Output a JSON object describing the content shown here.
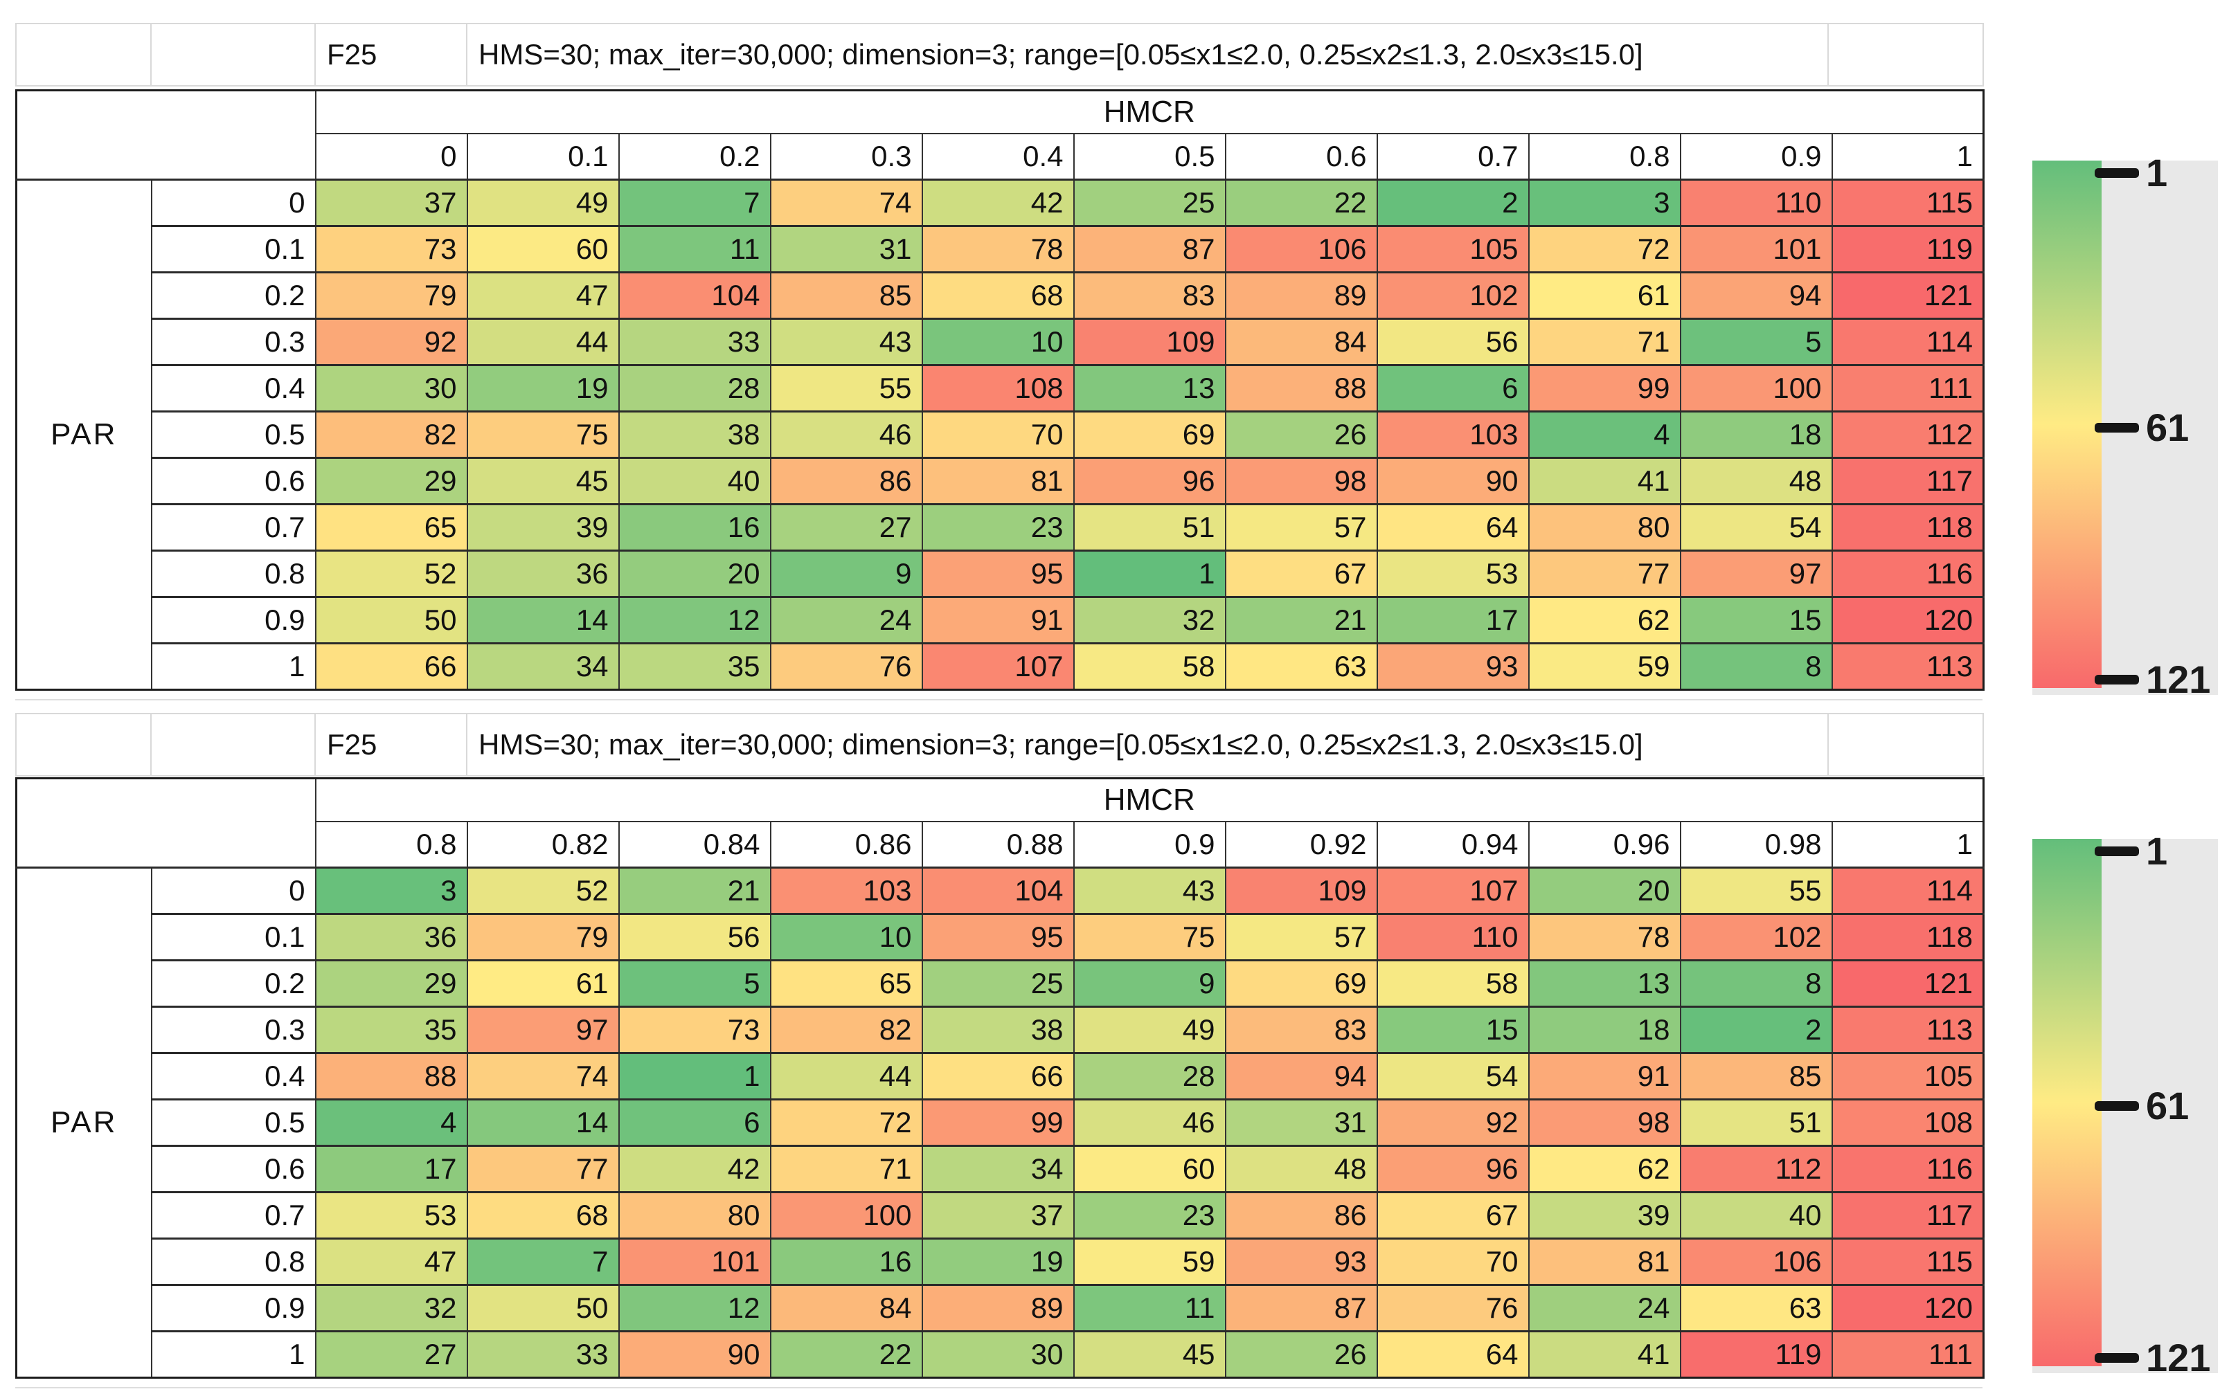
{
  "chart_data": [
    {
      "type": "heatmap",
      "title": "F25",
      "subtitle": "HMS=30; max_iter=30,000; dimension=3; range=[0.05≤x1≤2.0, 0.25≤x2≤1.3, 2.0≤x3≤15.0]",
      "xlabel": "HMCR",
      "ylabel": "PAR",
      "x": [
        "0",
        "0.1",
        "0.2",
        "0.3",
        "0.4",
        "0.5",
        "0.6",
        "0.7",
        "0.8",
        "0.9",
        "1"
      ],
      "y": [
        "0",
        "0.1",
        "0.2",
        "0.3",
        "0.4",
        "0.5",
        "0.6",
        "0.7",
        "0.8",
        "0.9",
        "1"
      ],
      "values": [
        [
          37,
          49,
          7,
          74,
          42,
          25,
          22,
          2,
          3,
          110,
          115
        ],
        [
          73,
          60,
          11,
          31,
          78,
          87,
          106,
          105,
          72,
          101,
          119
        ],
        [
          79,
          47,
          104,
          85,
          68,
          83,
          89,
          102,
          61,
          94,
          121
        ],
        [
          92,
          44,
          33,
          43,
          10,
          109,
          84,
          56,
          71,
          5,
          114
        ],
        [
          30,
          19,
          28,
          55,
          108,
          13,
          88,
          6,
          99,
          100,
          111
        ],
        [
          82,
          75,
          38,
          46,
          70,
          69,
          26,
          103,
          4,
          18,
          112
        ],
        [
          29,
          45,
          40,
          86,
          81,
          96,
          98,
          90,
          41,
          48,
          117
        ],
        [
          65,
          39,
          16,
          27,
          23,
          51,
          57,
          64,
          80,
          54,
          118
        ],
        [
          52,
          36,
          20,
          9,
          95,
          1,
          67,
          53,
          77,
          97,
          116
        ],
        [
          50,
          14,
          12,
          24,
          91,
          32,
          21,
          17,
          62,
          15,
          120
        ],
        [
          66,
          34,
          35,
          76,
          107,
          58,
          63,
          93,
          59,
          8,
          113
        ]
      ],
      "colorbar": {
        "ticks": [
          "1",
          "61",
          "121"
        ],
        "min": 1,
        "mid": 61,
        "max": 121,
        "min_color": "#63BE7B",
        "mid_color": "#FFEB84",
        "max_color": "#F8696B"
      }
    },
    {
      "type": "heatmap",
      "title": "F25",
      "subtitle": "HMS=30; max_iter=30,000; dimension=3; range=[0.05≤x1≤2.0, 0.25≤x2≤1.3, 2.0≤x3≤15.0]",
      "xlabel": "HMCR",
      "ylabel": "PAR",
      "x": [
        "0.8",
        "0.82",
        "0.84",
        "0.86",
        "0.88",
        "0.9",
        "0.92",
        "0.94",
        "0.96",
        "0.98",
        "1"
      ],
      "y": [
        "0",
        "0.1",
        "0.2",
        "0.3",
        "0.4",
        "0.5",
        "0.6",
        "0.7",
        "0.8",
        "0.9",
        "1"
      ],
      "values": [
        [
          3,
          52,
          21,
          103,
          104,
          43,
          109,
          107,
          20,
          55,
          114
        ],
        [
          36,
          79,
          56,
          10,
          95,
          75,
          57,
          110,
          78,
          102,
          118
        ],
        [
          29,
          61,
          5,
          65,
          25,
          9,
          69,
          58,
          13,
          8,
          121
        ],
        [
          35,
          97,
          73,
          82,
          38,
          49,
          83,
          15,
          18,
          2,
          113
        ],
        [
          88,
          74,
          1,
          44,
          66,
          28,
          94,
          54,
          91,
          85,
          105
        ],
        [
          4,
          14,
          6,
          72,
          99,
          46,
          31,
          92,
          98,
          51,
          108
        ],
        [
          17,
          77,
          42,
          71,
          34,
          60,
          48,
          96,
          62,
          112,
          116
        ],
        [
          53,
          68,
          80,
          100,
          37,
          23,
          86,
          67,
          39,
          40,
          117
        ],
        [
          47,
          7,
          101,
          16,
          19,
          59,
          93,
          70,
          81,
          106,
          115
        ],
        [
          32,
          50,
          12,
          84,
          89,
          11,
          87,
          76,
          24,
          63,
          120
        ],
        [
          27,
          33,
          90,
          22,
          30,
          45,
          26,
          64,
          41,
          119,
          111
        ]
      ],
      "colorbar": {
        "ticks": [
          "1",
          "61",
          "121"
        ],
        "min": 1,
        "mid": 61,
        "max": 121,
        "min_color": "#63BE7B",
        "mid_color": "#FFEB84",
        "max_color": "#F8696B"
      }
    }
  ]
}
